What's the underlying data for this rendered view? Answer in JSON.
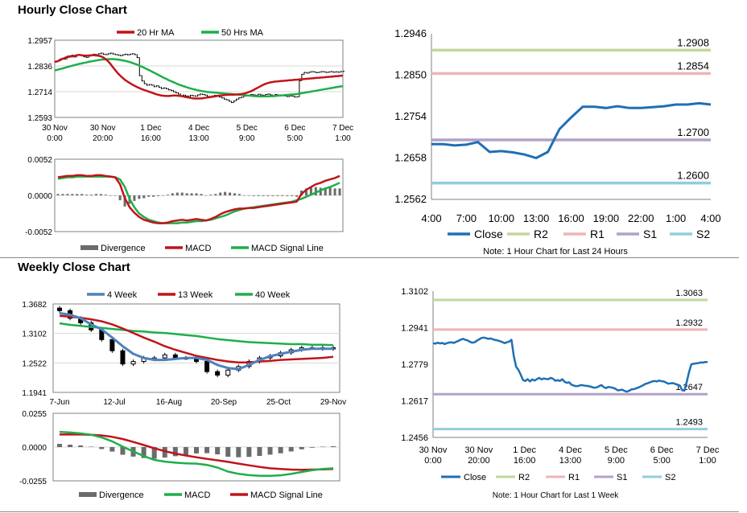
{
  "titles": {
    "hourly": "Hourly Close Chart",
    "weekly": "Weekly Close Chart"
  },
  "colors": {
    "red": "#c0141b",
    "green": "#1fae4a",
    "blue": "#4f81bd",
    "darkblue": "#1f6fb4",
    "divergence": "#6b6b6b",
    "r2": "#c3d69b",
    "r1": "#f0b4b4",
    "s1": "#b3a2c7",
    "s2": "#92cddc",
    "candle": "#000000"
  },
  "chart_data": [
    {
      "id": "hourly-price",
      "type": "line",
      "legend": [
        "20 Hr MA",
        "50 Hrs MA"
      ],
      "yticks": [
        "1.2957",
        "1.2836",
        "1.2714",
        "1.2593"
      ],
      "ylim": [
        1.2593,
        1.2957
      ],
      "xticks": [
        [
          "30 Nov",
          "0:00"
        ],
        [
          "30 Nov",
          "20:00"
        ],
        [
          "1 Dec",
          "16:00"
        ],
        [
          "4 Dec",
          "13:00"
        ],
        [
          "5 Dec",
          "9:00"
        ],
        [
          "6 Dec",
          "5:00"
        ],
        [
          "7 Dec",
          "1:00"
        ]
      ],
      "n": 120,
      "close": [
        1.2855,
        1.286,
        1.2868,
        1.2872,
        1.2868,
        1.2875,
        1.2882,
        1.2886,
        1.2878,
        1.2885,
        1.2889,
        1.2884,
        1.2879,
        1.2876,
        1.2882,
        1.2886,
        1.2891,
        1.2888,
        1.2893,
        1.2896,
        1.2891,
        1.2889,
        1.2893,
        1.2896,
        1.2892,
        1.2889,
        1.2887,
        1.2884,
        1.2888,
        1.2891,
        1.2888,
        1.2891,
        1.2893,
        1.2889,
        1.2875,
        1.279,
        1.2765,
        1.2752,
        1.2745,
        1.2748,
        1.2745,
        1.2738,
        1.2742,
        1.2735,
        1.2729,
        1.2732,
        1.2728,
        1.2723,
        1.272,
        1.2714,
        1.2709,
        1.2703,
        1.2695,
        1.2698,
        1.2694,
        1.2692,
        1.2697,
        1.2695,
        1.2693,
        1.2699,
        1.2703,
        1.2701,
        1.2698,
        1.2692,
        1.2689,
        1.2694,
        1.2697,
        1.2692,
        1.2689,
        1.2685,
        1.2679,
        1.2676,
        1.2669,
        1.2663,
        1.2671,
        1.2679,
        1.2685,
        1.2688,
        1.2693,
        1.2696,
        1.2698,
        1.2701,
        1.2699,
        1.2697,
        1.2702,
        1.2699,
        1.2697,
        1.2701,
        1.2703,
        1.2699,
        1.2696,
        1.2701,
        1.2698,
        1.2695,
        1.2698,
        1.2694,
        1.2691,
        1.2695,
        1.2693,
        1.2689,
        1.269,
        1.2766,
        1.2796,
        1.2805,
        1.2802,
        1.2806,
        1.2809,
        1.2807,
        1.2804,
        1.2806,
        1.2809,
        1.2808,
        1.2805,
        1.2807,
        1.2809,
        1.2806,
        1.2808,
        1.2806,
        1.2809,
        1.281
      ],
      "ma20": [
        1.2855,
        1.2857,
        1.2862,
        1.2868,
        1.2872,
        1.2878,
        1.2881,
        1.288,
        1.2882,
        1.2886,
        1.2888,
        1.2886,
        1.2885,
        1.2884,
        1.2885,
        1.2886,
        1.2887,
        1.2885,
        1.2884,
        1.2881,
        1.2876,
        1.2868,
        1.2858,
        1.2845,
        1.283,
        1.2816,
        1.2802,
        1.279,
        1.278,
        1.277,
        1.2762,
        1.2755,
        1.2748,
        1.2742,
        1.2736,
        1.2731,
        1.2726,
        1.2722,
        1.2718,
        1.2714,
        1.271,
        1.2706,
        1.2702,
        1.2699,
        1.2696,
        1.2695,
        1.2694,
        1.2694,
        1.2695,
        1.2696,
        1.2696,
        1.2695,
        1.2694,
        1.2692,
        1.2689,
        1.2687,
        1.2685,
        1.2683,
        1.2682,
        1.2682,
        1.2682,
        1.2683,
        1.2685,
        1.2687,
        1.2688,
        1.269,
        1.2692,
        1.2694,
        1.2696,
        1.2697,
        1.2698,
        1.2699,
        1.27,
        1.27,
        1.27,
        1.2701,
        1.2702,
        1.2703,
        1.2705,
        1.2708,
        1.2712,
        1.2716,
        1.2722,
        1.2728,
        1.2734,
        1.274,
        1.2746,
        1.2751,
        1.2755,
        1.2758,
        1.276,
        1.2762,
        1.2763,
        1.2764,
        1.2765,
        1.2766,
        1.2767,
        1.2768,
        1.2769,
        1.277,
        1.2771,
        1.2772,
        1.2773,
        1.2774,
        1.2775,
        1.2776,
        1.2777,
        1.2778,
        1.2779,
        1.278,
        1.2781,
        1.2782,
        1.2783,
        1.2784,
        1.2785,
        1.2786,
        1.2787,
        1.2788,
        1.2789,
        1.279
      ],
      "ma50": [
        1.2815,
        1.2817,
        1.282,
        1.2823,
        1.2826,
        1.283,
        1.2833,
        1.2836,
        1.2839,
        1.2842,
        1.2845,
        1.2847,
        1.285,
        1.2852,
        1.2855,
        1.2857,
        1.2859,
        1.2861,
        1.2863,
        1.2865,
        1.2866,
        1.2867,
        1.2868,
        1.2868,
        1.2868,
        1.2867,
        1.2866,
        1.2864,
        1.2862,
        1.286,
        1.2857,
        1.2854,
        1.285,
        1.2846,
        1.2842,
        1.2837,
        1.2832,
        1.2827,
        1.2821,
        1.2816,
        1.281,
        1.2804,
        1.2798,
        1.2792,
        1.2786,
        1.278,
        1.2775,
        1.2769,
        1.2764,
        1.2759,
        1.2754,
        1.2749,
        1.2745,
        1.2741,
        1.2737,
        1.2733,
        1.273,
        1.2727,
        1.2724,
        1.2721,
        1.2719,
        1.2717,
        1.2715,
        1.2713,
        1.2712,
        1.2711,
        1.271,
        1.2709,
        1.2708,
        1.2707,
        1.2706,
        1.2705,
        1.2704,
        1.2703,
        1.2702,
        1.2701,
        1.27,
        1.2699,
        1.2698,
        1.2697,
        1.2696,
        1.2695,
        1.2694,
        1.2693,
        1.2692,
        1.2692,
        1.2692,
        1.2692,
        1.2692,
        1.2693,
        1.2693,
        1.2694,
        1.2695,
        1.2696,
        1.2697,
        1.2698,
        1.2699,
        1.27,
        1.2701,
        1.2702,
        1.2703,
        1.2705,
        1.2707,
        1.2709,
        1.2711,
        1.2713,
        1.2715,
        1.2717,
        1.2719,
        1.2721,
        1.2723,
        1.2725,
        1.2727,
        1.2729,
        1.2731,
        1.2733,
        1.2735,
        1.2737,
        1.2739,
        1.274
      ]
    },
    {
      "id": "hourly-macd",
      "type": "bar",
      "legend": [
        "Divergence",
        "MACD",
        "MACD Signal Line"
      ],
      "yticks": [
        "0.0052",
        "0.0000",
        "-0.0052"
      ],
      "ylim": [
        -0.0052,
        0.0052
      ],
      "n": 60,
      "macd": [
        0.0026,
        0.0027,
        0.0028,
        0.0028,
        0.0029,
        0.0029,
        0.0028,
        0.0028,
        0.0029,
        0.0029,
        0.0028,
        0.0027,
        0.0026,
        0.0016,
        -0.0004,
        -0.0017,
        -0.0025,
        -0.0031,
        -0.0035,
        -0.0037,
        -0.0039,
        -0.004,
        -0.004,
        -0.0039,
        -0.0037,
        -0.0036,
        -0.0035,
        -0.0036,
        -0.0035,
        -0.0034,
        -0.0035,
        -0.0036,
        -0.0034,
        -0.0031,
        -0.0027,
        -0.0024,
        -0.0022,
        -0.002,
        -0.0019,
        -0.0019,
        -0.0018,
        -0.0018,
        -0.0017,
        -0.0016,
        -0.0015,
        -0.0014,
        -0.0013,
        -0.0012,
        -0.0011,
        -0.001,
        -0.0009,
        0.0002,
        0.0008,
        0.0012,
        0.0016,
        0.0018,
        0.0021,
        0.0023,
        0.0025,
        0.0028
      ],
      "signal": [
        0.0024,
        0.0025,
        0.0026,
        0.0026,
        0.0027,
        0.0027,
        0.0027,
        0.0027,
        0.0027,
        0.0027,
        0.0027,
        0.0027,
        0.0026,
        0.0023,
        0.0012,
        -0.0005,
        -0.0017,
        -0.0026,
        -0.0031,
        -0.0035,
        -0.0037,
        -0.0039,
        -0.004,
        -0.004,
        -0.004,
        -0.004,
        -0.0039,
        -0.0039,
        -0.0038,
        -0.0037,
        -0.0037,
        -0.0036,
        -0.0035,
        -0.0033,
        -0.0031,
        -0.0029,
        -0.0026,
        -0.0023,
        -0.0021,
        -0.0019,
        -0.0018,
        -0.0017,
        -0.0016,
        -0.0015,
        -0.0014,
        -0.0013,
        -0.0012,
        -0.0011,
        -0.001,
        -0.0009,
        -0.0007,
        -0.0005,
        -0.0002,
        0.0001,
        0.0004,
        0.0007,
        0.001,
        0.0012,
        0.0015,
        0.0018
      ],
      "divergence": [
        0.0002,
        0.0002,
        0.0002,
        0.0002,
        0.0002,
        0.0002,
        0.0001,
        0.0001,
        0.0002,
        0.0002,
        0.0001,
        0.0,
        0.0,
        -0.0007,
        -0.0016,
        -0.0012,
        -0.0008,
        -0.0005,
        -0.0004,
        -0.0002,
        -0.0002,
        -0.0001,
        0.0,
        0.0001,
        0.0003,
        0.0004,
        0.0004,
        0.0003,
        0.0003,
        0.0003,
        0.0002,
        0.0,
        0.0001,
        0.0002,
        0.0004,
        0.0005,
        0.0004,
        0.0003,
        0.0002,
        0.0,
        0.0,
        -0.0001,
        -0.0001,
        -0.0001,
        -0.0001,
        -0.0001,
        -0.0001,
        -0.0001,
        -0.0001,
        -0.0001,
        -0.0002,
        0.0007,
        0.001,
        0.0011,
        0.0012,
        0.0011,
        0.0011,
        0.0011,
        0.001,
        0.001
      ]
    },
    {
      "id": "hourly-close-24h",
      "type": "line",
      "legend": [
        "Close",
        "R2",
        "R1",
        "S1",
        "S2"
      ],
      "yticks": [
        "1.2946",
        "1.2850",
        "1.2754",
        "1.2658",
        "1.2562"
      ],
      "ylim": [
        1.2562,
        1.2946
      ],
      "xticks": [
        "4:00",
        "7:00",
        "10:00",
        "13:00",
        "16:00",
        "19:00",
        "22:00",
        "1:00",
        "4:00"
      ],
      "x": [
        0,
        1,
        2,
        3,
        4,
        5,
        6,
        7,
        8,
        9,
        10,
        11,
        12,
        13,
        14,
        15,
        16,
        17,
        18,
        19,
        20,
        21,
        22,
        23,
        24
      ],
      "close": [
        1.269,
        1.269,
        1.2687,
        1.2689,
        1.2695,
        1.2672,
        1.2674,
        1.2671,
        1.2666,
        1.2658,
        1.2672,
        1.2725,
        1.2752,
        1.2777,
        1.2777,
        1.2774,
        1.2778,
        1.2774,
        1.2774,
        1.2776,
        1.2778,
        1.2782,
        1.2782,
        1.2785,
        1.2782
      ],
      "levels": {
        "R2": 1.2908,
        "R1": 1.2854,
        "S1": 1.27,
        "S2": 1.26
      },
      "level_labels": [
        "1.2908",
        "1.2854",
        "1.2700",
        "1.2600"
      ],
      "note": "Note: 1 Hour Chart for Last 24 Hours"
    },
    {
      "id": "weekly-price",
      "type": "line",
      "legend": [
        "4 Week",
        "13 Week",
        "40 Week"
      ],
      "yticks": [
        "1.3682",
        "1.3102",
        "1.2522",
        "1.1941"
      ],
      "ylim": [
        1.1941,
        1.3682
      ],
      "xticks": [
        "7-Jun",
        "12-Jul",
        "16-Aug",
        "20-Sep",
        "25-Oct",
        "29-Nov"
      ],
      "n": 27,
      "close": [
        1.355,
        1.34,
        1.331,
        1.317,
        1.298,
        1.276,
        1.25,
        1.255,
        1.262,
        1.262,
        1.268,
        1.262,
        1.262,
        1.255,
        1.235,
        1.228,
        1.238,
        1.245,
        1.255,
        1.262,
        1.266,
        1.272,
        1.278,
        1.282,
        1.282,
        1.28,
        1.282
      ],
      "ma4": [
        1.35,
        1.347,
        1.34,
        1.328,
        1.318,
        1.302,
        1.285,
        1.27,
        1.262,
        1.258,
        1.258,
        1.26,
        1.262,
        1.262,
        1.258,
        1.248,
        1.242,
        1.24,
        1.248,
        1.258,
        1.265,
        1.27,
        1.274,
        1.278,
        1.28,
        1.28,
        1.28
      ],
      "ma13": [
        1.345,
        1.343,
        1.341,
        1.338,
        1.334,
        1.328,
        1.32,
        1.311,
        1.302,
        1.294,
        1.285,
        1.278,
        1.272,
        1.266,
        1.262,
        1.258,
        1.255,
        1.253,
        1.253,
        1.255,
        1.256,
        1.258,
        1.259,
        1.26,
        1.261,
        1.262,
        1.264
      ],
      "ma40": [
        1.33,
        1.327,
        1.325,
        1.323,
        1.321,
        1.319,
        1.317,
        1.315,
        1.314,
        1.312,
        1.311,
        1.309,
        1.307,
        1.305,
        1.302,
        1.299,
        1.297,
        1.295,
        1.293,
        1.292,
        1.291,
        1.29,
        1.289,
        1.289,
        1.288,
        1.288,
        1.287
      ]
    },
    {
      "id": "weekly-macd",
      "type": "bar",
      "legend": [
        "Divergence",
        "MACD",
        "MACD Signal Line"
      ],
      "yticks": [
        "0.0255",
        "0.0000",
        "-0.0255"
      ],
      "ylim": [
        -0.0255,
        0.0255
      ],
      "n": 27,
      "macd": [
        0.0115,
        0.011,
        0.0103,
        0.0093,
        0.0073,
        0.0043,
        0.0003,
        -0.0033,
        -0.0068,
        -0.0097,
        -0.011,
        -0.0118,
        -0.0123,
        -0.0125,
        -0.0135,
        -0.0155,
        -0.0185,
        -0.0202,
        -0.0212,
        -0.0217,
        -0.0217,
        -0.0213,
        -0.0203,
        -0.0188,
        -0.0175,
        -0.0165,
        -0.016
      ],
      "signal": [
        0.0095,
        0.0096,
        0.0095,
        0.0093,
        0.0088,
        0.0077,
        0.0061,
        0.0039,
        0.0015,
        -0.0009,
        -0.0031,
        -0.0049,
        -0.0064,
        -0.0077,
        -0.0089,
        -0.01,
        -0.0112,
        -0.0125,
        -0.0138,
        -0.015,
        -0.016,
        -0.0166,
        -0.017,
        -0.0171,
        -0.017,
        -0.0168,
        -0.0166
      ],
      "divergence": [
        0.0024,
        0.0018,
        0.0012,
        0.0003,
        -0.0015,
        -0.0034,
        -0.0058,
        -0.0072,
        -0.0083,
        -0.0088,
        -0.0079,
        -0.0069,
        -0.0059,
        -0.0048,
        -0.0046,
        -0.0055,
        -0.0073,
        -0.0077,
        -0.0074,
        -0.0067,
        -0.0057,
        -0.0047,
        -0.0033,
        -0.0017,
        -0.0005,
        0.0003,
        0.0006
      ]
    },
    {
      "id": "weekly-close",
      "type": "line",
      "legend": [
        "Close",
        "R2",
        "R1",
        "S1",
        "S2"
      ],
      "yticks": [
        "1.3102",
        "1.2941",
        "1.2779",
        "1.2617",
        "1.2456"
      ],
      "ylim": [
        1.2456,
        1.3102
      ],
      "xticks": [
        [
          "30 Nov",
          "0:00"
        ],
        [
          "30 Nov",
          "20:00"
        ],
        [
          "1 Dec",
          "16:00"
        ],
        [
          "4 Dec",
          "13:00"
        ],
        [
          "5 Dec",
          "9:00"
        ],
        [
          "6 Dec",
          "5:00"
        ],
        [
          "7 Dec",
          "1:00"
        ]
      ],
      "n": 120,
      "close": [
        1.2872,
        1.287,
        1.2874,
        1.2871,
        1.2873,
        1.2868,
        1.2872,
        1.2875,
        1.2876,
        1.2873,
        1.2878,
        1.2882,
        1.2888,
        1.2891,
        1.2887,
        1.2884,
        1.2878,
        1.2874,
        1.2876,
        1.2883,
        1.2889,
        1.2895,
        1.2897,
        1.2894,
        1.2891,
        1.2893,
        1.2889,
        1.2886,
        1.2884,
        1.2881,
        1.2877,
        1.2872,
        1.2876,
        1.2879,
        1.2887,
        1.2815,
        1.2768,
        1.2754,
        1.2733,
        1.2709,
        1.2705,
        1.2713,
        1.2703,
        1.2712,
        1.2707,
        1.2713,
        1.2719,
        1.2712,
        1.2716,
        1.2714,
        1.2713,
        1.2719,
        1.2715,
        1.2706,
        1.2709,
        1.2705,
        1.2713,
        1.2702,
        1.2697,
        1.2699,
        1.2689,
        1.2685,
        1.2682,
        1.2683,
        1.2687,
        1.2686,
        1.2684,
        1.2683,
        1.2681,
        1.2678,
        1.2675,
        1.2677,
        1.2682,
        1.2687,
        1.2678,
        1.2674,
        1.2679,
        1.2677,
        1.2675,
        1.2671,
        1.2664,
        1.2665,
        1.2667,
        1.2661,
        1.2658,
        1.2662,
        1.2668,
        1.2669,
        1.2673,
        1.2676,
        1.2681,
        1.2686,
        1.2692,
        1.2695,
        1.2699,
        1.2703,
        1.2705,
        1.2703,
        1.2707,
        1.2704,
        1.2703,
        1.2698,
        1.2693,
        1.2695,
        1.2696,
        1.2692,
        1.2689,
        1.2685,
        1.2664,
        1.2663,
        1.2702,
        1.2746,
        1.2779,
        1.2781,
        1.2783,
        1.2784,
        1.2787,
        1.2786,
        1.2789,
        1.2789
      ],
      "levels": {
        "R2": 1.3063,
        "R1": 1.2932,
        "S1": 1.2647,
        "S2": 1.2493
      },
      "level_labels": [
        "1.3063",
        "1.2932",
        "1.2647",
        "1.2493"
      ],
      "note": "Note: 1 Hour Chart for Last 1 Week"
    }
  ]
}
